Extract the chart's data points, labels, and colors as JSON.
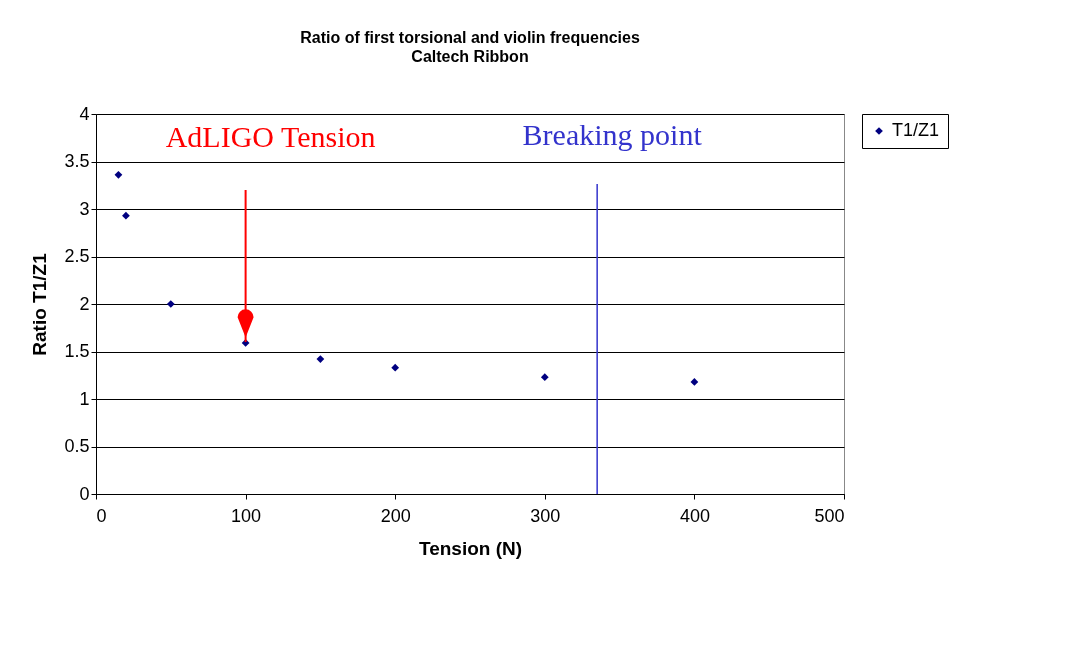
{
  "chart_data": {
    "type": "scatter",
    "title": "Ratio of first torsional and violin frequencies",
    "subtitle": "Caltech Ribbon",
    "xlabel": "Tension (N)",
    "ylabel": "Ratio T1/Z1",
    "x": [
      15,
      20,
      50,
      100,
      150,
      200,
      300,
      400
    ],
    "series": [
      {
        "name": "T1/Z1",
        "color": "#000080",
        "values": [
          3.36,
          2.93,
          2.0,
          1.59,
          1.42,
          1.33,
          1.23,
          1.18
        ]
      }
    ],
    "xlim": [
      0,
      500
    ],
    "xticks": [
      0,
      100,
      200,
      300,
      400,
      500
    ],
    "ylim": [
      0,
      4
    ],
    "yticks": [
      0,
      0.5,
      1,
      1.5,
      2,
      2.5,
      3,
      3.5,
      4
    ],
    "grid": "y",
    "legend": "right",
    "marker": "diamond",
    "ref_lines": [
      {
        "axis": "x",
        "value": 335,
        "label": "Breaking point",
        "color": "#3333cc"
      }
    ],
    "annotations": [
      {
        "text": "AdLIGO Tension",
        "x": 100,
        "y": 1.6
      }
    ]
  }
}
